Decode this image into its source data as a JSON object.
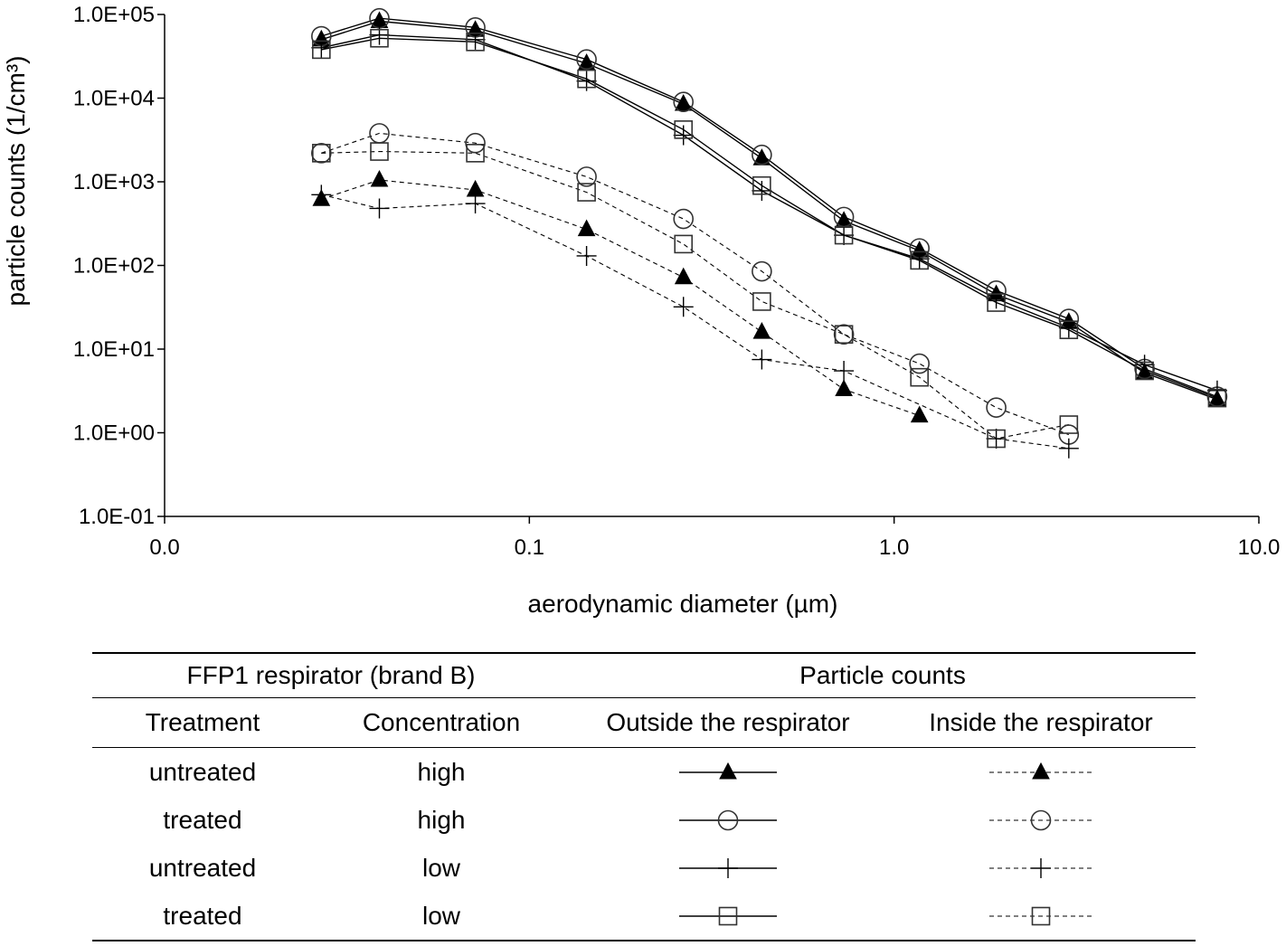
{
  "chart_data": {
    "type": "line",
    "title": "",
    "xlabel": "aerodynamic diameter (µm)",
    "ylabel": "particle counts (1/cm³)",
    "x_scale": "log",
    "y_scale": "log",
    "xlim": [
      0.01,
      10
    ],
    "ylim": [
      0.1,
      100000
    ],
    "x_ticks": [
      0.01,
      0.1,
      1,
      10
    ],
    "x_tick_labels": [
      "0.0",
      "0.1",
      "1.0",
      "10.0"
    ],
    "y_ticks": [
      0.1,
      1,
      10,
      100,
      1000,
      10000,
      100000
    ],
    "y_tick_labels": [
      "1.0E-01",
      "1.0E+00",
      "1.0E+01",
      "1.0E+02",
      "1.0E+03",
      "1.0E+04",
      "1.0E+05"
    ],
    "grid": false,
    "series": [
      {
        "id": "out-untreated-high",
        "location": "outside",
        "marker": "triangle",
        "x": [
          0.0269,
          0.0388,
          0.0711,
          0.1435,
          0.2645,
          0.4338,
          0.7282,
          1.1735,
          1.9055,
          3.0124,
          4.8599,
          7.6867
        ],
        "y": [
          50000,
          83000,
          65000,
          26000,
          8500,
          1900,
          340,
          150,
          45,
          21,
          5.2,
          2.5
        ]
      },
      {
        "id": "out-treated-high",
        "location": "outside",
        "marker": "circle",
        "x": [
          0.0269,
          0.0388,
          0.0711,
          0.1435,
          0.2645,
          0.4338,
          0.7282,
          1.1735,
          1.9055,
          3.0124,
          4.8599,
          7.6867
        ],
        "y": [
          55000,
          90000,
          70000,
          29000,
          9000,
          2100,
          380,
          160,
          50,
          23,
          5.8,
          2.7
        ]
      },
      {
        "id": "out-untreated-low",
        "location": "outside",
        "marker": "plus",
        "x": [
          0.0269,
          0.0388,
          0.0711,
          0.1435,
          0.2645,
          0.4338,
          0.7282,
          1.1735,
          1.9055,
          3.0124,
          4.8599,
          7.6867
        ],
        "y": [
          40000,
          57000,
          50000,
          16000,
          3600,
          780,
          230,
          120,
          40,
          18,
          6.5,
          3.2
        ]
      },
      {
        "id": "out-treated-low",
        "location": "outside",
        "marker": "square",
        "x": [
          0.0269,
          0.0388,
          0.0711,
          0.1435,
          0.2645,
          0.4338,
          0.7282,
          1.1735,
          1.9055,
          3.0124,
          4.8599,
          7.6867
        ],
        "y": [
          38000,
          52000,
          47000,
          17000,
          4200,
          900,
          230,
          115,
          36,
          17,
          5.5,
          2.6
        ]
      },
      {
        "id": "in-untreated-high",
        "location": "inside",
        "marker": "triangle",
        "x": [
          0.0269,
          0.0388,
          0.0711,
          0.1435,
          0.2645,
          0.4338,
          0.7282,
          1.1735
        ],
        "y": [
          620,
          1050,
          800,
          270,
          72,
          16,
          3.3,
          1.6
        ]
      },
      {
        "id": "in-treated-high",
        "location": "inside",
        "marker": "circle",
        "x": [
          0.0269,
          0.0388,
          0.0711,
          0.1435,
          0.2645,
          0.4338,
          0.7282,
          1.1735,
          1.9055,
          3.0124
        ],
        "y": [
          2200,
          3800,
          2900,
          1150,
          360,
          85,
          15,
          6.7,
          2,
          0.95
        ]
      },
      {
        "id": "in-untreated-low",
        "location": "inside",
        "marker": "plus",
        "x": [
          0.0269,
          0.0388,
          0.0711,
          0.1435,
          0.2645,
          0.4338,
          0.7282,
          1.9055,
          3.0124
        ],
        "y": [
          700,
          480,
          550,
          130,
          32,
          7.5,
          5.5,
          0.85,
          0.65
        ]
      },
      {
        "id": "in-treated-low",
        "location": "inside",
        "marker": "square",
        "x": [
          0.0269,
          0.0388,
          0.0711,
          0.1435,
          0.2645,
          0.4338,
          0.7282,
          1.1735,
          1.9055,
          3.0124
        ],
        "y": [
          2200,
          2300,
          2200,
          750,
          180,
          37,
          15,
          4.6,
          0.85,
          1.25
        ]
      }
    ]
  },
  "legend": {
    "group_header": "FFP1 respirator (brand B)",
    "counts_header": "Particle counts",
    "col_treatment": "Treatment",
    "col_concentration": "Concentration",
    "col_outside": "Outside the respirator",
    "col_inside": "Inside the respirator",
    "rows": [
      {
        "treatment": "untreated",
        "concentration": "high",
        "marker": "triangle"
      },
      {
        "treatment": "treated",
        "concentration": "high",
        "marker": "circle"
      },
      {
        "treatment": "untreated",
        "concentration": "low",
        "marker": "plus"
      },
      {
        "treatment": "treated",
        "concentration": "low",
        "marker": "square"
      }
    ]
  }
}
